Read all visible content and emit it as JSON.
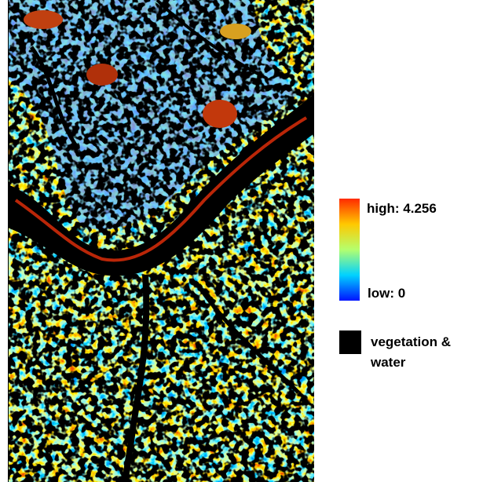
{
  "legend": {
    "high": "high: 4.256",
    "low": "low: 0",
    "mask": "vegetation & water"
  }
}
